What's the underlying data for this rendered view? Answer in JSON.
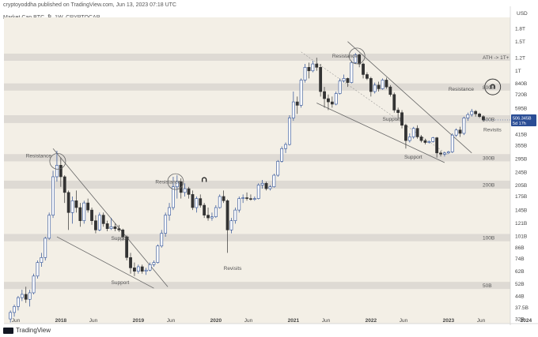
{
  "header": {
    "published_line": "cryptoyoddha published on TradingView.com, Jun 13, 2023 07:18 UTC",
    "symbol_line": "Market Cap BTC, ₿, 1W, CRYPTOCAP"
  },
  "footer": {
    "brand": "TradingView"
  },
  "colors": {
    "background": "#f3efe6",
    "zone": "#d9d6d0",
    "candle_up": "#2a4d95",
    "candle_down": "#333333",
    "trendline": "#666666",
    "price_tag": "#2a4d95",
    "revisit_text": "#2962ff"
  },
  "chart_data": {
    "type": "candlestick",
    "title": "Market Cap BTC, ₿, 1W, CRYPTOCAP",
    "y_scale": "log",
    "y_unit": "USD",
    "y_ticks": [
      "1.8T",
      "1.5T",
      "1.2T",
      "1T",
      "840B",
      "720B",
      "595B",
      "500B",
      "415B",
      "355B",
      "295B",
      "245B",
      "205B",
      "175B",
      "145B",
      "121B",
      "101B",
      "86B",
      "74B",
      "62B",
      "52B",
      "44B",
      "37.5B",
      "32B"
    ],
    "y_tick_values": [
      1800,
      1500,
      1200,
      1000,
      840,
      720,
      595,
      500,
      415,
      355,
      295,
      245,
      205,
      175,
      145,
      121,
      101,
      86,
      74,
      62,
      52,
      44,
      37.5,
      32
    ],
    "x_ticks": [
      {
        "label": "Jun",
        "t": 2017.42
      },
      {
        "label": "2018",
        "t": 2018.0
      },
      {
        "label": "Jun",
        "t": 2018.42
      },
      {
        "label": "2019",
        "t": 2019.0
      },
      {
        "label": "Jun",
        "t": 2019.42
      },
      {
        "label": "2020",
        "t": 2020.0
      },
      {
        "label": "Jun",
        "t": 2020.42
      },
      {
        "label": "2021",
        "t": 2021.0
      },
      {
        "label": "Jun",
        "t": 2021.42
      },
      {
        "label": "2022",
        "t": 2022.0
      },
      {
        "label": "Jun",
        "t": 2022.42
      },
      {
        "label": "2023",
        "t": 2023.0
      },
      {
        "label": "Jun",
        "t": 2023.42
      },
      {
        "label": "2024",
        "t": 2024.0
      },
      {
        "label": "Ju",
        "t": 2024.42
      }
    ],
    "axis_currency_label": "USD",
    "current_price_label": "506.345B",
    "current_countdown_label": "5d 17h",
    "current_value": 506,
    "zones": [
      {
        "label": "ATH -> 1T+",
        "low": 1150,
        "high": 1270
      },
      {
        "label": "800B",
        "low": 760,
        "high": 840
      },
      {
        "label": "500B",
        "low": 485,
        "high": 540
      },
      {
        "label": "300B",
        "low": 285,
        "high": 315
      },
      {
        "label": "200B",
        "low": 195,
        "high": 218
      },
      {
        "label": "100B",
        "low": 94,
        "high": 104
      },
      {
        "label": "50B",
        "low": 48.5,
        "high": 53.5
      }
    ],
    "annotations": [
      {
        "text": "Resistance",
        "t": 2017.55,
        "v": 300
      },
      {
        "text": "Support",
        "t": 2018.65,
        "v": 96
      },
      {
        "text": "Support",
        "t": 2018.65,
        "v": 52
      },
      {
        "text": "Resistance",
        "t": 2019.22,
        "v": 210
      },
      {
        "text": "Revisits",
        "t": 2020.1,
        "v": 63
      },
      {
        "text": "Resistance",
        "t": 2021.5,
        "v": 1200
      },
      {
        "text": "Support",
        "t": 2022.15,
        "v": 500
      },
      {
        "text": "Support",
        "t": 2022.43,
        "v": 295
      },
      {
        "text": "Resistance",
        "t": 2023.0,
        "v": 760
      },
      {
        "text": "Revisits",
        "t": 2023.45,
        "v": 432
      }
    ],
    "candles": [
      {
        "t": 2017.35,
        "o": 32,
        "h": 36,
        "l": 30.5,
        "c": 35
      },
      {
        "t": 2017.4,
        "o": 35,
        "h": 39,
        "l": 33,
        "c": 38
      },
      {
        "t": 2017.45,
        "o": 38,
        "h": 44,
        "l": 36,
        "c": 43
      },
      {
        "t": 2017.5,
        "o": 43,
        "h": 48,
        "l": 41,
        "c": 45
      },
      {
        "t": 2017.55,
        "o": 45,
        "h": 50,
        "l": 40,
        "c": 42
      },
      {
        "t": 2017.6,
        "o": 42,
        "h": 48,
        "l": 38,
        "c": 46
      },
      {
        "t": 2017.65,
        "o": 46,
        "h": 60,
        "l": 45,
        "c": 58
      },
      {
        "t": 2017.7,
        "o": 58,
        "h": 72,
        "l": 56,
        "c": 70
      },
      {
        "t": 2017.75,
        "o": 70,
        "h": 80,
        "l": 66,
        "c": 75
      },
      {
        "t": 2017.8,
        "o": 75,
        "h": 100,
        "l": 72,
        "c": 98
      },
      {
        "t": 2017.85,
        "o": 98,
        "h": 140,
        "l": 96,
        "c": 135
      },
      {
        "t": 2017.9,
        "o": 135,
        "h": 250,
        "l": 130,
        "c": 230
      },
      {
        "t": 2017.95,
        "o": 230,
        "h": 330,
        "l": 215,
        "c": 270
      },
      {
        "t": 2018.0,
        "o": 270,
        "h": 300,
        "l": 200,
        "c": 230
      },
      {
        "t": 2018.05,
        "o": 230,
        "h": 235,
        "l": 160,
        "c": 185
      },
      {
        "t": 2018.1,
        "o": 185,
        "h": 190,
        "l": 110,
        "c": 140
      },
      {
        "t": 2018.15,
        "o": 140,
        "h": 175,
        "l": 120,
        "c": 165
      },
      {
        "t": 2018.2,
        "o": 165,
        "h": 190,
        "l": 140,
        "c": 150
      },
      {
        "t": 2018.25,
        "o": 150,
        "h": 160,
        "l": 115,
        "c": 125
      },
      {
        "t": 2018.3,
        "o": 125,
        "h": 165,
        "l": 120,
        "c": 160
      },
      {
        "t": 2018.35,
        "o": 160,
        "h": 170,
        "l": 140,
        "c": 145
      },
      {
        "t": 2018.4,
        "o": 145,
        "h": 150,
        "l": 118,
        "c": 125
      },
      {
        "t": 2018.45,
        "o": 125,
        "h": 135,
        "l": 105,
        "c": 110
      },
      {
        "t": 2018.5,
        "o": 110,
        "h": 140,
        "l": 108,
        "c": 135
      },
      {
        "t": 2018.55,
        "o": 135,
        "h": 140,
        "l": 115,
        "c": 120
      },
      {
        "t": 2018.6,
        "o": 120,
        "h": 125,
        "l": 108,
        "c": 112
      },
      {
        "t": 2018.65,
        "o": 112,
        "h": 130,
        "l": 110,
        "c": 115
      },
      {
        "t": 2018.7,
        "o": 115,
        "h": 120,
        "l": 108,
        "c": 112
      },
      {
        "t": 2018.75,
        "o": 112,
        "h": 118,
        "l": 107,
        "c": 110
      },
      {
        "t": 2018.8,
        "o": 110,
        "h": 112,
        "l": 95,
        "c": 100
      },
      {
        "t": 2018.85,
        "o": 100,
        "h": 102,
        "l": 72,
        "c": 75
      },
      {
        "t": 2018.9,
        "o": 75,
        "h": 80,
        "l": 60,
        "c": 65
      },
      {
        "t": 2018.95,
        "o": 65,
        "h": 70,
        "l": 58,
        "c": 62
      },
      {
        "t": 2019.0,
        "o": 62,
        "h": 68,
        "l": 60,
        "c": 66
      },
      {
        "t": 2019.05,
        "o": 66,
        "h": 68,
        "l": 60,
        "c": 62
      },
      {
        "t": 2019.1,
        "o": 62,
        "h": 65,
        "l": 59,
        "c": 63
      },
      {
        "t": 2019.15,
        "o": 63,
        "h": 70,
        "l": 62,
        "c": 68
      },
      {
        "t": 2019.2,
        "o": 68,
        "h": 72,
        "l": 66,
        "c": 70
      },
      {
        "t": 2019.25,
        "o": 70,
        "h": 90,
        "l": 69,
        "c": 88
      },
      {
        "t": 2019.3,
        "o": 88,
        "h": 110,
        "l": 86,
        "c": 105
      },
      {
        "t": 2019.35,
        "o": 105,
        "h": 140,
        "l": 100,
        "c": 135
      },
      {
        "t": 2019.4,
        "o": 135,
        "h": 160,
        "l": 125,
        "c": 150
      },
      {
        "t": 2019.45,
        "o": 150,
        "h": 230,
        "l": 145,
        "c": 200
      },
      {
        "t": 2019.5,
        "o": 200,
        "h": 235,
        "l": 170,
        "c": 215
      },
      {
        "t": 2019.55,
        "o": 215,
        "h": 225,
        "l": 170,
        "c": 185
      },
      {
        "t": 2019.6,
        "o": 185,
        "h": 210,
        "l": 175,
        "c": 195
      },
      {
        "t": 2019.65,
        "o": 195,
        "h": 200,
        "l": 170,
        "c": 180
      },
      {
        "t": 2019.7,
        "o": 180,
        "h": 190,
        "l": 145,
        "c": 150
      },
      {
        "t": 2019.75,
        "o": 150,
        "h": 175,
        "l": 140,
        "c": 170
      },
      {
        "t": 2019.8,
        "o": 170,
        "h": 180,
        "l": 150,
        "c": 155
      },
      {
        "t": 2019.85,
        "o": 155,
        "h": 160,
        "l": 130,
        "c": 135
      },
      {
        "t": 2019.9,
        "o": 135,
        "h": 150,
        "l": 125,
        "c": 130
      },
      {
        "t": 2019.95,
        "o": 130,
        "h": 140,
        "l": 125,
        "c": 132
      },
      {
        "t": 2020.0,
        "o": 132,
        "h": 155,
        "l": 130,
        "c": 150
      },
      {
        "t": 2020.05,
        "o": 150,
        "h": 180,
        "l": 148,
        "c": 175
      },
      {
        "t": 2020.1,
        "o": 175,
        "h": 190,
        "l": 160,
        "c": 165
      },
      {
        "t": 2020.15,
        "o": 165,
        "h": 168,
        "l": 80,
        "c": 110
      },
      {
        "t": 2020.2,
        "o": 110,
        "h": 130,
        "l": 105,
        "c": 125
      },
      {
        "t": 2020.25,
        "o": 125,
        "h": 150,
        "l": 120,
        "c": 145
      },
      {
        "t": 2020.3,
        "o": 145,
        "h": 175,
        "l": 140,
        "c": 170
      },
      {
        "t": 2020.35,
        "o": 170,
        "h": 180,
        "l": 160,
        "c": 172
      },
      {
        "t": 2020.4,
        "o": 172,
        "h": 185,
        "l": 165,
        "c": 170
      },
      {
        "t": 2020.45,
        "o": 170,
        "h": 180,
        "l": 165,
        "c": 168
      },
      {
        "t": 2020.5,
        "o": 168,
        "h": 175,
        "l": 165,
        "c": 170
      },
      {
        "t": 2020.55,
        "o": 170,
        "h": 210,
        "l": 168,
        "c": 205
      },
      {
        "t": 2020.6,
        "o": 205,
        "h": 220,
        "l": 195,
        "c": 210
      },
      {
        "t": 2020.65,
        "o": 210,
        "h": 215,
        "l": 190,
        "c": 195
      },
      {
        "t": 2020.7,
        "o": 195,
        "h": 205,
        "l": 190,
        "c": 200
      },
      {
        "t": 2020.75,
        "o": 200,
        "h": 240,
        "l": 198,
        "c": 235
      },
      {
        "t": 2020.8,
        "o": 235,
        "h": 290,
        "l": 230,
        "c": 285
      },
      {
        "t": 2020.85,
        "o": 285,
        "h": 350,
        "l": 280,
        "c": 340
      },
      {
        "t": 2020.9,
        "o": 340,
        "h": 370,
        "l": 320,
        "c": 360
      },
      {
        "t": 2020.95,
        "o": 360,
        "h": 540,
        "l": 355,
        "c": 520
      },
      {
        "t": 2021.0,
        "o": 520,
        "h": 750,
        "l": 500,
        "c": 650
      },
      {
        "t": 2021.05,
        "o": 650,
        "h": 700,
        "l": 550,
        "c": 620
      },
      {
        "t": 2021.1,
        "o": 620,
        "h": 900,
        "l": 600,
        "c": 880
      },
      {
        "t": 2021.15,
        "o": 880,
        "h": 1100,
        "l": 850,
        "c": 1050
      },
      {
        "t": 2021.2,
        "o": 1050,
        "h": 1120,
        "l": 900,
        "c": 1000
      },
      {
        "t": 2021.25,
        "o": 1000,
        "h": 1150,
        "l": 980,
        "c": 1100
      },
      {
        "t": 2021.3,
        "o": 1100,
        "h": 1200,
        "l": 1000,
        "c": 1050
      },
      {
        "t": 2021.35,
        "o": 1050,
        "h": 1100,
        "l": 700,
        "c": 750
      },
      {
        "t": 2021.4,
        "o": 750,
        "h": 800,
        "l": 600,
        "c": 680
      },
      {
        "t": 2021.45,
        "o": 680,
        "h": 720,
        "l": 580,
        "c": 650
      },
      {
        "t": 2021.5,
        "o": 650,
        "h": 700,
        "l": 600,
        "c": 630
      },
      {
        "t": 2021.55,
        "o": 630,
        "h": 750,
        "l": 620,
        "c": 730
      },
      {
        "t": 2021.6,
        "o": 730,
        "h": 900,
        "l": 720,
        "c": 870
      },
      {
        "t": 2021.65,
        "o": 870,
        "h": 950,
        "l": 850,
        "c": 900
      },
      {
        "t": 2021.7,
        "o": 900,
        "h": 910,
        "l": 800,
        "c": 850
      },
      {
        "t": 2021.75,
        "o": 850,
        "h": 1150,
        "l": 840,
        "c": 1120
      },
      {
        "t": 2021.8,
        "o": 1120,
        "h": 1280,
        "l": 1100,
        "c": 1250
      },
      {
        "t": 2021.85,
        "o": 1250,
        "h": 1270,
        "l": 1050,
        "c": 1100
      },
      {
        "t": 2021.9,
        "o": 1100,
        "h": 1120,
        "l": 900,
        "c": 950
      },
      {
        "t": 2021.95,
        "o": 950,
        "h": 980,
        "l": 880,
        "c": 900
      },
      {
        "t": 2022.0,
        "o": 900,
        "h": 920,
        "l": 700,
        "c": 750
      },
      {
        "t": 2022.05,
        "o": 750,
        "h": 850,
        "l": 730,
        "c": 820
      },
      {
        "t": 2022.1,
        "o": 820,
        "h": 860,
        "l": 750,
        "c": 780
      },
      {
        "t": 2022.15,
        "o": 780,
        "h": 900,
        "l": 770,
        "c": 880
      },
      {
        "t": 2022.2,
        "o": 880,
        "h": 910,
        "l": 780,
        "c": 800
      },
      {
        "t": 2022.25,
        "o": 800,
        "h": 820,
        "l": 700,
        "c": 720
      },
      {
        "t": 2022.3,
        "o": 720,
        "h": 740,
        "l": 560,
        "c": 580
      },
      {
        "t": 2022.35,
        "o": 580,
        "h": 600,
        "l": 500,
        "c": 560
      },
      {
        "t": 2022.4,
        "o": 560,
        "h": 580,
        "l": 450,
        "c": 470
      },
      {
        "t": 2022.45,
        "o": 470,
        "h": 480,
        "l": 340,
        "c": 380
      },
      {
        "t": 2022.5,
        "o": 380,
        "h": 420,
        "l": 370,
        "c": 400
      },
      {
        "t": 2022.55,
        "o": 400,
        "h": 460,
        "l": 390,
        "c": 450
      },
      {
        "t": 2022.6,
        "o": 450,
        "h": 470,
        "l": 390,
        "c": 400
      },
      {
        "t": 2022.65,
        "o": 400,
        "h": 410,
        "l": 370,
        "c": 380
      },
      {
        "t": 2022.7,
        "o": 380,
        "h": 390,
        "l": 360,
        "c": 370
      },
      {
        "t": 2022.75,
        "o": 370,
        "h": 380,
        "l": 365,
        "c": 375
      },
      {
        "t": 2022.8,
        "o": 375,
        "h": 400,
        "l": 370,
        "c": 395
      },
      {
        "t": 2022.85,
        "o": 395,
        "h": 400,
        "l": 300,
        "c": 320
      },
      {
        "t": 2022.9,
        "o": 320,
        "h": 330,
        "l": 305,
        "c": 315
      },
      {
        "t": 2022.95,
        "o": 315,
        "h": 325,
        "l": 305,
        "c": 320
      },
      {
        "t": 2023.0,
        "o": 320,
        "h": 330,
        "l": 315,
        "c": 325
      },
      {
        "t": 2023.05,
        "o": 325,
        "h": 420,
        "l": 320,
        "c": 410
      },
      {
        "t": 2023.1,
        "o": 410,
        "h": 450,
        "l": 400,
        "c": 440
      },
      {
        "t": 2023.15,
        "o": 440,
        "h": 460,
        "l": 400,
        "c": 420
      },
      {
        "t": 2023.2,
        "o": 420,
        "h": 530,
        "l": 410,
        "c": 520
      },
      {
        "t": 2023.25,
        "o": 520,
        "h": 560,
        "l": 500,
        "c": 545
      },
      {
        "t": 2023.3,
        "o": 545,
        "h": 590,
        "l": 530,
        "c": 570
      },
      {
        "t": 2023.35,
        "o": 570,
        "h": 580,
        "l": 530,
        "c": 550
      },
      {
        "t": 2023.4,
        "o": 550,
        "h": 560,
        "l": 520,
        "c": 530
      },
      {
        "t": 2023.45,
        "o": 530,
        "h": 540,
        "l": 495,
        "c": 506
      }
    ]
  }
}
